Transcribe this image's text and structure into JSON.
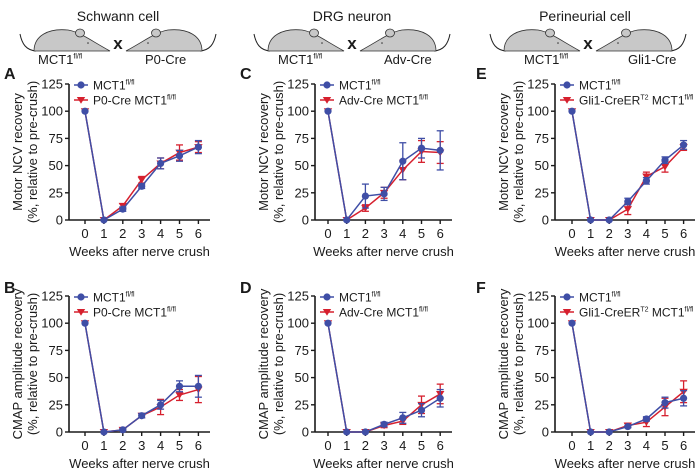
{
  "groups": [
    {
      "title": "Schwann cell",
      "left_mouse": "MCT1",
      "left_sup": "fl/fl",
      "right_mouse": "P0-Cre",
      "cross_symbol": "x"
    },
    {
      "title": "DRG neuron",
      "left_mouse": "MCT1",
      "left_sup": "fl/fl",
      "right_mouse": "Adv-Cre",
      "cross_symbol": "x"
    },
    {
      "title": "Perineurial cell",
      "left_mouse": "MCT1",
      "left_sup": "fl/fl",
      "right_mouse": "Gli1-Cre",
      "cross_symbol": "x"
    }
  ],
  "colors": {
    "control": "#3f4ea6",
    "knockout": "#d6202e",
    "axis": "#1a1a1a",
    "mouse_fill": "#c8c8c8",
    "cross": "#8a8a8a"
  },
  "chart_data": [
    {
      "panel": "A",
      "type": "line",
      "xlabel": "Weeks after nerve crush",
      "ylabel_line1": "Motor NCV recovery",
      "ylabel_line2": "(%, relative to pre-crush)",
      "x": [
        0,
        1,
        2,
        3,
        4,
        5,
        6
      ],
      "xticks": [
        "0",
        "1",
        "2",
        "3",
        "4",
        "5",
        "6"
      ],
      "yticks": [
        "0",
        "25",
        "50",
        "75",
        "100",
        "125"
      ],
      "ylim": [
        0,
        125
      ],
      "legend_position": "top-left",
      "series": [
        {
          "name": "MCT1",
          "name_sup": "fl/fl",
          "marker": "circle",
          "color_key": "control",
          "values": [
            100,
            0,
            10,
            31,
            52,
            59,
            67
          ],
          "errors": [
            0,
            0,
            2,
            2,
            5,
            5,
            6
          ]
        },
        {
          "name": "P0-Cre MCT1",
          "name_sup": "fl/fl",
          "marker": "triangle-down",
          "color_key": "knockout",
          "values": [
            100,
            0,
            13,
            37,
            52,
            62,
            67
          ],
          "errors": [
            0,
            0,
            2,
            3,
            5,
            7,
            5
          ]
        }
      ]
    },
    {
      "panel": "B",
      "type": "line",
      "xlabel": "Weeks after nerve crush",
      "ylabel_line1": "CMAP amplitude recovery",
      "ylabel_line2": "(%, relative to pre-crush)",
      "x": [
        0,
        1,
        2,
        3,
        4,
        5,
        6
      ],
      "xticks": [
        "0",
        "1",
        "2",
        "3",
        "4",
        "5",
        "6"
      ],
      "yticks": [
        "0",
        "25",
        "50",
        "75",
        "100",
        "125"
      ],
      "ylim": [
        0,
        125
      ],
      "legend_position": "top-left",
      "series": [
        {
          "name": "MCT1",
          "name_sup": "fl/fl",
          "marker": "circle",
          "color_key": "control",
          "values": [
            100,
            0,
            2,
            15,
            25,
            42,
            42
          ],
          "errors": [
            0,
            0,
            1,
            2,
            4,
            5,
            10
          ]
        },
        {
          "name": "P0-Cre MCT1",
          "name_sup": "fl/fl",
          "marker": "triangle-down",
          "color_key": "knockout",
          "values": [
            100,
            0,
            2,
            15,
            23,
            34,
            39
          ],
          "errors": [
            0,
            0,
            1,
            2,
            7,
            5,
            12
          ]
        }
      ]
    },
    {
      "panel": "C",
      "type": "line",
      "xlabel": "Weeks after nerve crush",
      "ylabel_line1": "Motor NCV recovery",
      "ylabel_line2": "(%, relative to pre-crush)",
      "x": [
        0,
        1,
        2,
        3,
        4,
        5,
        6
      ],
      "xticks": [
        "0",
        "1",
        "2",
        "3",
        "4",
        "5",
        "6"
      ],
      "yticks": [
        "0",
        "25",
        "50",
        "75",
        "100",
        "125"
      ],
      "ylim": [
        0,
        125
      ],
      "legend_position": "top-left",
      "series": [
        {
          "name": "MCT1",
          "name_sup": "fl/fl",
          "marker": "circle",
          "color_key": "control",
          "values": [
            100,
            0,
            22,
            24,
            54,
            66,
            64
          ],
          "errors": [
            0,
            0,
            11,
            6,
            17,
            9,
            18
          ]
        },
        {
          "name": "Adv-Cre MCT1",
          "name_sup": "fl/fl",
          "marker": "triangle-down",
          "color_key": "knockout",
          "values": [
            100,
            0,
            11,
            25,
            46,
            63,
            62
          ],
          "errors": [
            0,
            0,
            3,
            5,
            9,
            10,
            10
          ]
        }
      ]
    },
    {
      "panel": "D",
      "type": "line",
      "xlabel": "Weeks after nerve crush",
      "ylabel_line1": "CMAP amplitude recovery",
      "ylabel_line2": "(%, relative to pre-crush)",
      "x": [
        0,
        1,
        2,
        3,
        4,
        5,
        6
      ],
      "xticks": [
        "0",
        "1",
        "2",
        "3",
        "4",
        "5",
        "6"
      ],
      "yticks": [
        "0",
        "25",
        "50",
        "75",
        "100",
        "125"
      ],
      "ylim": [
        0,
        125
      ],
      "legend_position": "top-left",
      "series": [
        {
          "name": "MCT1",
          "name_sup": "fl/fl",
          "marker": "circle",
          "color_key": "control",
          "values": [
            100,
            0,
            0,
            7,
            13,
            20,
            31
          ],
          "errors": [
            0,
            0,
            0,
            2,
            5,
            6,
            8
          ]
        },
        {
          "name": "Adv-Cre MCT1",
          "name_sup": "fl/fl",
          "marker": "triangle-down",
          "color_key": "knockout",
          "values": [
            100,
            0,
            0,
            6,
            10,
            25,
            35
          ],
          "errors": [
            0,
            0,
            0,
            2,
            3,
            8,
            9
          ]
        }
      ]
    },
    {
      "panel": "E",
      "type": "line",
      "xlabel": "Weeks after nerve crush",
      "ylabel_line1": "Motor NCV recovery",
      "ylabel_line2": "(%, relative to pre-crush)",
      "x": [
        0,
        1,
        2,
        3,
        4,
        5,
        6
      ],
      "xticks": [
        "0",
        "1",
        "2",
        "3",
        "4",
        "5",
        "6"
      ],
      "yticks": [
        "0",
        "25",
        "50",
        "75",
        "100",
        "125"
      ],
      "ylim": [
        0,
        125
      ],
      "legend_position": "top-left",
      "series": [
        {
          "name": "MCT1",
          "name_sup": "fl/fl",
          "marker": "circle",
          "color_key": "control",
          "values": [
            100,
            0,
            0,
            17,
            36,
            55,
            69
          ],
          "errors": [
            0,
            0,
            0,
            3,
            3,
            3,
            4
          ]
        },
        {
          "name": "Gli1-CreER",
          "name_sup": "T2",
          "name_suffix": " MCT1",
          "name_suffix_sup": "fl/fl",
          "marker": "triangle-down",
          "color_key": "knockout",
          "values": [
            100,
            0,
            0,
            10,
            40,
            49,
            67
          ],
          "errors": [
            0,
            0,
            0,
            5,
            4,
            5,
            3
          ]
        }
      ]
    },
    {
      "panel": "F",
      "type": "line",
      "xlabel": "Weeks after nerve crush",
      "ylabel_line1": "CMAP amplitude recovery",
      "ylabel_line2": "(%, relative to pre-crush)",
      "x": [
        0,
        1,
        2,
        3,
        4,
        5,
        6
      ],
      "xticks": [
        "0",
        "1",
        "2",
        "3",
        "4",
        "5",
        "6"
      ],
      "yticks": [
        "0",
        "25",
        "50",
        "75",
        "100",
        "125"
      ],
      "ylim": [
        0,
        125
      ],
      "legend_position": "top-left",
      "series": [
        {
          "name": "MCT1",
          "name_sup": "fl/fl",
          "marker": "circle",
          "color_key": "control",
          "values": [
            100,
            0,
            0,
            5,
            12,
            27,
            31
          ],
          "errors": [
            0,
            0,
            0,
            1,
            2,
            5,
            7
          ]
        },
        {
          "name": "Gli1-CreER",
          "name_sup": "T2",
          "name_suffix": " MCT1",
          "name_suffix_sup": "fl/fl",
          "marker": "triangle-down",
          "color_key": "knockout",
          "values": [
            100,
            0,
            0,
            6,
            9,
            23,
            37
          ],
          "errors": [
            0,
            0,
            0,
            2,
            4,
            8,
            10
          ]
        }
      ]
    }
  ]
}
